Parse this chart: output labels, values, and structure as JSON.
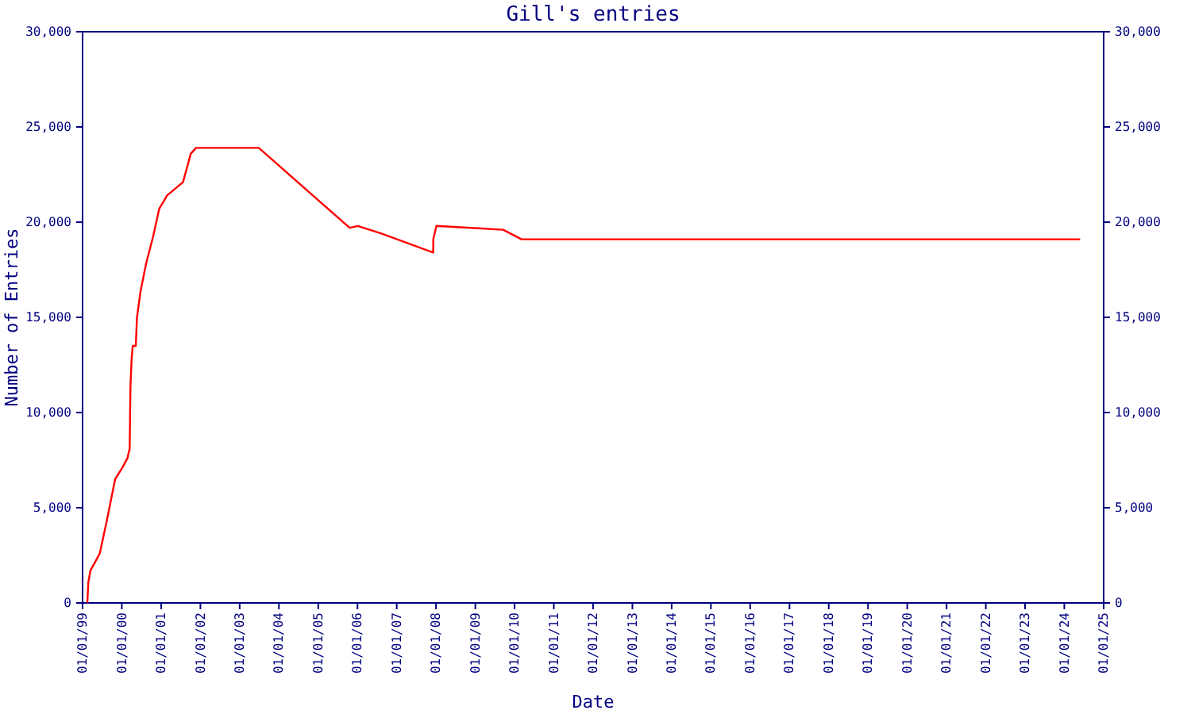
{
  "chart_data": {
    "type": "line",
    "title": "Gill's entries",
    "xlabel": "Date",
    "ylabel": "Number of Entries",
    "x": [
      "1999-02-14",
      "1999-02-24",
      "1999-03-15",
      "1999-05-03",
      "1999-06-10",
      "1999-08-10",
      "1999-10-31",
      "2000-01-05",
      "2000-02-22",
      "2000-03-14",
      "2000-03-21",
      "2000-04-01",
      "2000-04-11",
      "2000-05-10",
      "2000-05-21",
      "2000-06-24",
      "2000-08-13",
      "2000-10-16",
      "2000-12-14",
      "2001-02-25",
      "2001-07-23",
      "2001-10-04",
      "2001-11-21",
      "2003-06-28",
      "2005-10-20",
      "2006-01-04",
      "2006-08-12",
      "2007-12-06",
      "2007-12-07",
      "2008-01-05",
      "2008-11-25",
      "2009-09-17",
      "2010-03-07",
      "2024-05-27"
    ],
    "series": [
      {
        "color": "#ff0000",
        "values": [
          0,
          1100,
          1700,
          2200,
          2600,
          4200,
          6500,
          7100,
          7600,
          8100,
          11300,
          12800,
          13500,
          13500,
          15000,
          16400,
          17800,
          19200,
          20700,
          21400,
          22100,
          23600,
          23900,
          23900,
          19700,
          19800,
          19400,
          18400,
          19100,
          19800,
          19700,
          19600,
          19100,
          19100
        ]
      }
    ],
    "xlim": [
      "1999-01-01",
      "2025-01-01"
    ],
    "xticks": [
      {
        "value": "1999-01-01",
        "label": "01/01/99"
      },
      {
        "value": "2000-01-01",
        "label": "01/01/00"
      },
      {
        "value": "2001-01-01",
        "label": "01/01/01"
      },
      {
        "value": "2002-01-01",
        "label": "01/01/02"
      },
      {
        "value": "2003-01-01",
        "label": "01/01/03"
      },
      {
        "value": "2004-01-01",
        "label": "01/01/04"
      },
      {
        "value": "2005-01-01",
        "label": "01/01/05"
      },
      {
        "value": "2006-01-01",
        "label": "01/01/06"
      },
      {
        "value": "2007-01-01",
        "label": "01/01/07"
      },
      {
        "value": "2008-01-01",
        "label": "01/01/08"
      },
      {
        "value": "2009-01-01",
        "label": "01/01/09"
      },
      {
        "value": "2010-01-01",
        "label": "01/01/10"
      },
      {
        "value": "2011-01-01",
        "label": "01/01/11"
      },
      {
        "value": "2012-01-01",
        "label": "01/01/12"
      },
      {
        "value": "2013-01-01",
        "label": "01/01/13"
      },
      {
        "value": "2014-01-01",
        "label": "01/01/14"
      },
      {
        "value": "2015-01-01",
        "label": "01/01/15"
      },
      {
        "value": "2016-01-01",
        "label": "01/01/16"
      },
      {
        "value": "2017-01-01",
        "label": "01/01/17"
      },
      {
        "value": "2018-01-01",
        "label": "01/01/18"
      },
      {
        "value": "2019-01-01",
        "label": "01/01/19"
      },
      {
        "value": "2020-01-01",
        "label": "01/01/20"
      },
      {
        "value": "2021-01-01",
        "label": "01/01/21"
      },
      {
        "value": "2022-01-01",
        "label": "01/01/22"
      },
      {
        "value": "2023-01-01",
        "label": "01/01/23"
      },
      {
        "value": "2024-01-01",
        "label": "01/01/24"
      },
      {
        "value": "2025-01-01",
        "label": "01/01/25"
      }
    ],
    "ylim": [
      0,
      30000
    ],
    "yticks": [
      0,
      {
        "value": 5000,
        "label": "5,000"
      },
      {
        "value": 10000,
        "label": "10,000"
      },
      {
        "value": 15000,
        "label": "15,000"
      },
      {
        "value": 20000,
        "label": "20,000"
      },
      {
        "value": 25000,
        "label": "25,000"
      },
      {
        "value": 30000,
        "label": "30,000"
      }
    ],
    "y2lim": [
      0,
      30000
    ],
    "y2ticks": [
      0,
      {
        "value": 5000,
        "label": "5,000"
      },
      {
        "value": 10000,
        "label": "10,000"
      },
      {
        "value": 15000,
        "label": "15,000"
      },
      {
        "value": 20000,
        "label": "20,000"
      },
      {
        "value": 25000,
        "label": "25,000"
      },
      {
        "value": 30000,
        "label": "30,000"
      }
    ],
    "grid": false,
    "marker": "none",
    "line_style": "solid"
  }
}
